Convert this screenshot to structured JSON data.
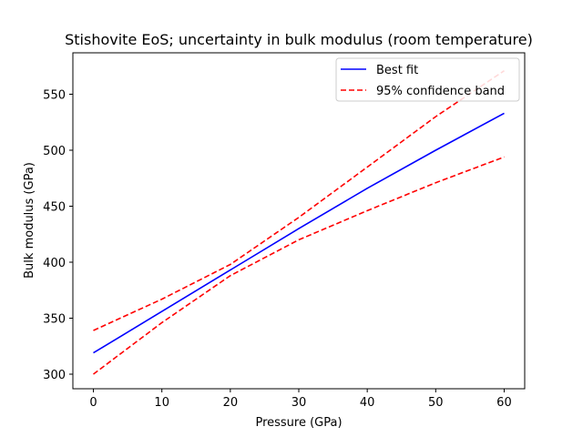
{
  "chart_data": {
    "type": "line",
    "title": "Stishovite EoS; uncertainty in bulk modulus (room temperature)",
    "xlabel": "Pressure (GPa)",
    "ylabel": "Bulk modulus (GPa)",
    "xlim": [
      -3,
      63
    ],
    "ylim": [
      287,
      587
    ],
    "xticks": [
      0,
      10,
      20,
      30,
      40,
      50,
      60
    ],
    "yticks": [
      300,
      350,
      400,
      450,
      500,
      550
    ],
    "grid": false,
    "legend_position": "top-right",
    "series": [
      {
        "name": "Best fit",
        "color": "#0000ff",
        "dash": "solid",
        "x": [
          0,
          10,
          20,
          30,
          40,
          50,
          60
        ],
        "y": [
          319,
          356,
          393,
          430,
          466,
          500,
          533
        ]
      },
      {
        "name": "95% confidence band",
        "color": "#ff0000",
        "dash": "dashed",
        "x": [
          0,
          10,
          20,
          30,
          40,
          50,
          60
        ],
        "y": [
          339,
          367,
          398,
          440,
          485,
          530,
          571
        ]
      },
      {
        "name": "",
        "color": "#ff0000",
        "dash": "dashed",
        "x": [
          0,
          10,
          20,
          30,
          40,
          50,
          60
        ],
        "y": [
          300,
          346,
          388,
          420,
          446,
          471,
          494
        ]
      }
    ]
  }
}
